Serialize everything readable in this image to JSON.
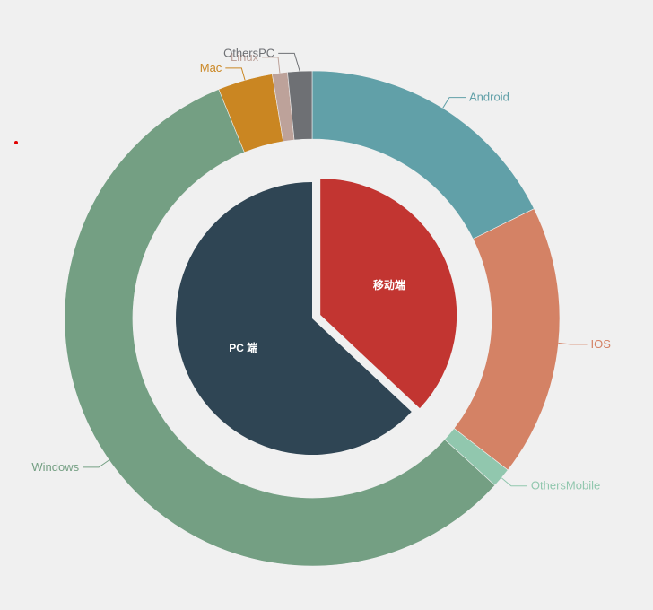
{
  "chart_data": {
    "type": "pie",
    "title": "",
    "inner": {
      "slices": [
        {
          "name": "移动端",
          "value": 37,
          "color": "#c23531"
        },
        {
          "name": "PC 端",
          "value": 63,
          "color": "#2f4554"
        }
      ]
    },
    "outer": {
      "slices": [
        {
          "name": "Android",
          "value": 17.8,
          "color": "#61a0a8"
        },
        {
          "name": "IOS",
          "value": 17.9,
          "color": "#d48265"
        },
        {
          "name": "OthersMobile",
          "value": 1.3,
          "color": "#91c7ae"
        },
        {
          "name": "Windows",
          "value": 57.4,
          "color": "#749f83"
        },
        {
          "name": "Mac",
          "value": 3.6,
          "color": "#ca8622"
        },
        {
          "name": "Linux",
          "value": 1.0,
          "color": "#bda29a"
        },
        {
          "name": "OthersPC",
          "value": 1.6,
          "color": "#6e7074"
        }
      ]
    }
  }
}
